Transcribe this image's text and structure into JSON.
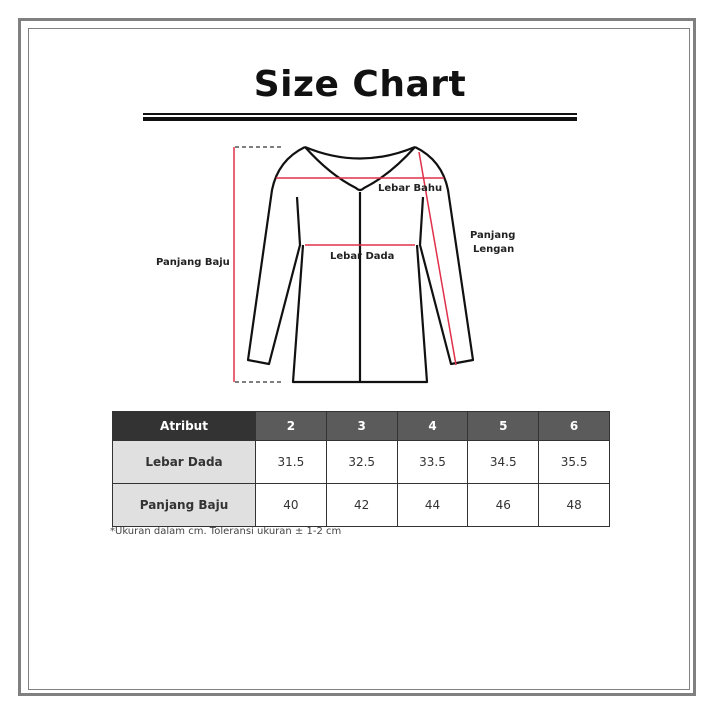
{
  "title": "Size Chart",
  "diagram": {
    "labels": {
      "shoulder": "Lebar Bahu",
      "chest": "Lebar Dada",
      "length": "Panjang Baju",
      "sleeve_line1": "Panjang",
      "sleeve_line2": "Lengan"
    },
    "measure_color": "#e0304a"
  },
  "table": {
    "header": [
      "Atribut",
      "2",
      "3",
      "4",
      "5",
      "6"
    ],
    "rows": [
      {
        "label": "Lebar Dada",
        "values": [
          "31.5",
          "32.5",
          "33.5",
          "34.5",
          "35.5"
        ]
      },
      {
        "label": "Panjang Baju",
        "values": [
          "40",
          "42",
          "44",
          "46",
          "48"
        ]
      }
    ]
  },
  "note": "*Ukuran dalam cm. Toleransi ukuran ± 1-2 cm"
}
